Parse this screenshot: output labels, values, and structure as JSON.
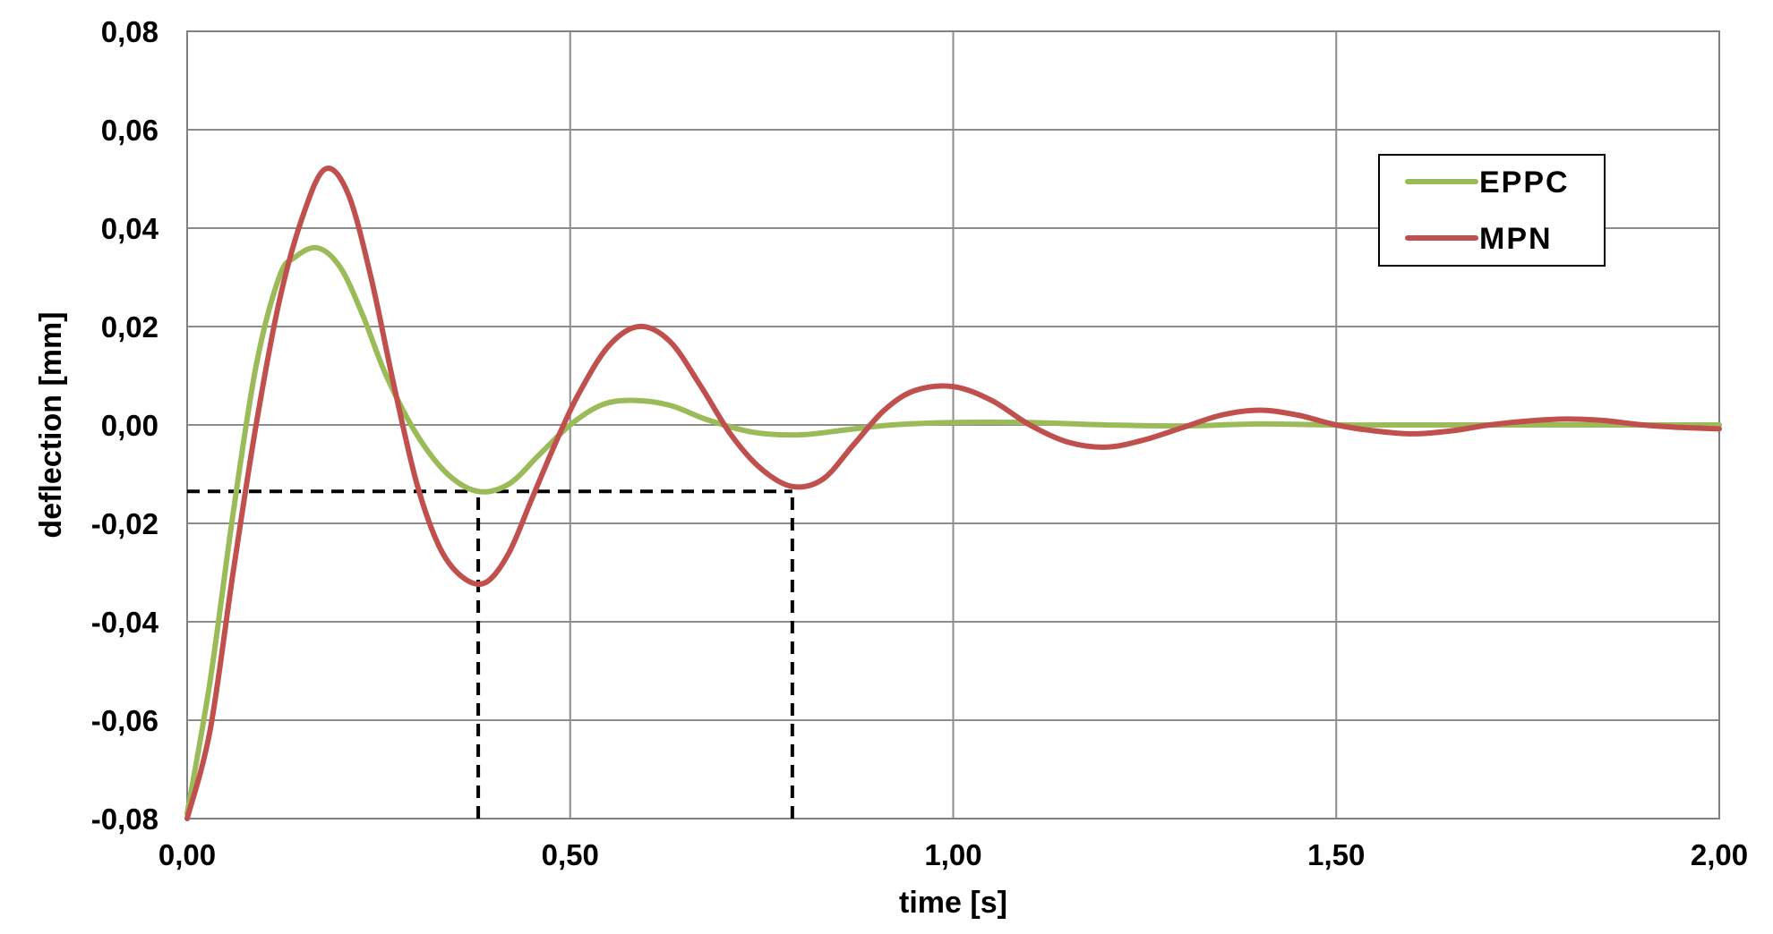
{
  "chart_data": {
    "type": "line",
    "title": "",
    "xlabel": "time [s]",
    "ylabel": "deflection [mm]",
    "xlim": [
      0,
      2
    ],
    "ylim": [
      -0.08,
      0.08
    ],
    "x_ticks": [
      "0,00",
      "0,50",
      "1,00",
      "1,50",
      "2,00"
    ],
    "y_ticks": [
      "0,08",
      "0,06",
      "0,04",
      "0,02",
      "0,00",
      "-0,02",
      "-0,04",
      "-0,06",
      "-0,08"
    ],
    "grid": true,
    "legend_position": "top-right",
    "series": [
      {
        "name": "EPPC",
        "color": "#9bbb59",
        "x": [
          0.0,
          0.03,
          0.06,
          0.09,
          0.12,
          0.14,
          0.17,
          0.2,
          0.23,
          0.26,
          0.3,
          0.34,
          0.38,
          0.42,
          0.46,
          0.5,
          0.54,
          0.58,
          0.63,
          0.68,
          0.74,
          0.8,
          0.86,
          0.92,
          1.0,
          1.1,
          1.2,
          1.3,
          1.4,
          1.5,
          1.6,
          1.7,
          1.8,
          1.9,
          2.0
        ],
        "y": [
          -0.079,
          -0.052,
          -0.018,
          0.012,
          0.03,
          0.034,
          0.036,
          0.032,
          0.022,
          0.01,
          -0.002,
          -0.01,
          -0.0135,
          -0.012,
          -0.006,
          0.0,
          0.004,
          0.005,
          0.004,
          0.001,
          -0.0015,
          -0.002,
          -0.001,
          0.0,
          0.0005,
          0.0005,
          0.0,
          -0.0002,
          0.0002,
          0.0,
          0.0,
          0.0,
          0.0,
          0.0,
          0.0
        ]
      },
      {
        "name": "MPN",
        "color": "#c0504d",
        "x": [
          0.0,
          0.03,
          0.06,
          0.09,
          0.12,
          0.15,
          0.18,
          0.21,
          0.24,
          0.27,
          0.3,
          0.33,
          0.36,
          0.39,
          0.42,
          0.45,
          0.48,
          0.51,
          0.55,
          0.59,
          0.63,
          0.67,
          0.71,
          0.75,
          0.79,
          0.83,
          0.87,
          0.91,
          0.95,
          1.0,
          1.05,
          1.1,
          1.15,
          1.2,
          1.25,
          1.3,
          1.35,
          1.4,
          1.45,
          1.5,
          1.55,
          1.6,
          1.65,
          1.7,
          1.75,
          1.8,
          1.85,
          1.9,
          1.95,
          2.0
        ],
        "y": [
          -0.08,
          -0.062,
          -0.03,
          0.0,
          0.025,
          0.042,
          0.052,
          0.047,
          0.03,
          0.008,
          -0.012,
          -0.025,
          -0.031,
          -0.032,
          -0.026,
          -0.015,
          -0.004,
          0.006,
          0.016,
          0.02,
          0.017,
          0.008,
          -0.002,
          -0.009,
          -0.0125,
          -0.011,
          -0.004,
          0.003,
          0.007,
          0.0078,
          0.005,
          0.0,
          -0.0035,
          -0.0045,
          -0.003,
          -0.0005,
          0.002,
          0.003,
          0.002,
          0.0,
          -0.0012,
          -0.0018,
          -0.0012,
          0.0,
          0.0008,
          0.0012,
          0.0009,
          0.0,
          -0.0005,
          -0.0008
        ]
      }
    ],
    "annotations": [
      {
        "name": "reference-lines",
        "style": "dashed",
        "color": "#000000",
        "horizontal_y": -0.0135,
        "horizontal_x_range": [
          0.0,
          0.79
        ],
        "vertical_x": [
          0.38,
          0.79
        ],
        "vertical_y_range": [
          -0.08,
          -0.0135
        ]
      }
    ]
  }
}
